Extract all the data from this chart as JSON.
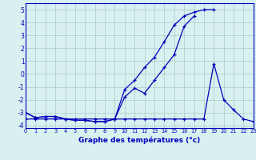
{
  "xlabel": "Graphe des températures (°c)",
  "x": [
    0,
    1,
    2,
    3,
    4,
    5,
    6,
    7,
    8,
    9,
    10,
    11,
    12,
    13,
    14,
    15,
    16,
    17,
    18,
    19,
    20,
    21,
    22,
    23
  ],
  "line1_x": [
    0,
    1,
    2,
    3,
    4,
    5,
    6,
    7,
    8,
    9,
    10,
    11,
    12,
    13,
    14,
    15,
    16,
    17,
    18,
    19
  ],
  "line1_y": [
    -3.0,
    -3.4,
    -3.3,
    -3.3,
    -3.5,
    -3.6,
    -3.6,
    -3.7,
    -3.7,
    -3.5,
    -1.2,
    -0.5,
    0.5,
    1.3,
    2.5,
    3.8,
    4.5,
    4.8,
    5.0,
    5.0
  ],
  "line2_x": [
    0,
    1,
    2,
    3,
    4,
    5,
    6,
    7,
    8,
    9,
    10,
    11,
    12,
    13,
    14,
    15,
    16,
    17
  ],
  "line2_y": [
    -3.0,
    -3.4,
    -3.3,
    -3.3,
    -3.5,
    -3.6,
    -3.6,
    -3.7,
    -3.7,
    -3.5,
    -1.8,
    -1.1,
    -1.5,
    -0.5,
    0.5,
    1.5,
    3.7,
    4.5
  ],
  "line3_x": [
    0,
    1,
    2,
    3,
    4,
    5,
    6,
    7,
    8,
    9,
    10,
    11,
    12,
    13,
    14,
    15,
    16,
    17,
    18,
    19,
    20,
    21,
    22,
    23
  ],
  "line3_y": [
    -3.5,
    -3.5,
    -3.5,
    -3.5,
    -3.5,
    -3.5,
    -3.5,
    -3.5,
    -3.5,
    -3.5,
    -3.5,
    -3.5,
    -3.5,
    -3.5,
    -3.5,
    -3.5,
    -3.5,
    -3.5,
    -3.5,
    0.8,
    -2.0,
    -2.8,
    -3.5,
    -3.7
  ],
  "ylim": [
    -4.2,
    5.5
  ],
  "xlim": [
    0,
    23
  ],
  "yticks": [
    -4,
    -3,
    -2,
    -1,
    0,
    1,
    2,
    3,
    4,
    5
  ],
  "xticks": [
    0,
    1,
    2,
    3,
    4,
    5,
    6,
    7,
    8,
    9,
    10,
    11,
    12,
    13,
    14,
    15,
    16,
    17,
    18,
    19,
    20,
    21,
    22,
    23
  ],
  "line_color": "#0000bb",
  "bg_color": "#d8f0f0",
  "grid_color": "#a8caca"
}
